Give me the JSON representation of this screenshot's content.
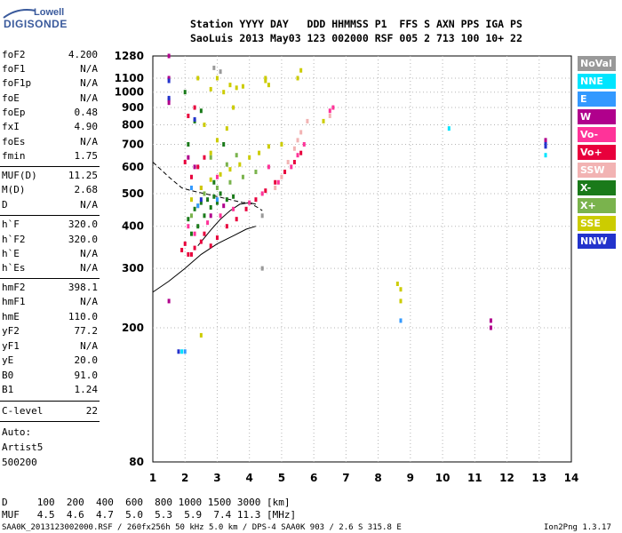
{
  "logo": {
    "brand": "Lowell",
    "product": "DIGISONDE"
  },
  "header": {
    "line1": "Station YYYY DAY   DDD HHMMSS P1  FFS S AXN PPS IGA PS",
    "line2": "SaoLuis 2013 May03 123 002000 RSF 005 2 713 100 10+ 22"
  },
  "params": [
    {
      "k": "foF2",
      "v": "4.200"
    },
    {
      "k": "foF1",
      "v": "N/A"
    },
    {
      "k": "foF1p",
      "v": "N/A"
    },
    {
      "k": "foE",
      "v": "N/A"
    },
    {
      "k": "foEp",
      "v": "0.48"
    },
    {
      "k": "fxI",
      "v": "4.90"
    },
    {
      "k": "foEs",
      "v": "N/A"
    },
    {
      "k": "fmin",
      "v": "1.75"
    },
    {
      "k": "MUF(D)",
      "v": "11.25"
    },
    {
      "k": "M(D)",
      "v": "2.68"
    },
    {
      "k": "D",
      "v": "N/A"
    },
    {
      "k": "h`F",
      "v": "320.0"
    },
    {
      "k": "h`F2",
      "v": "320.0"
    },
    {
      "k": "h`E",
      "v": "N/A"
    },
    {
      "k": "h`Es",
      "v": "N/A"
    },
    {
      "k": "hmF2",
      "v": "398.1"
    },
    {
      "k": "hmF1",
      "v": "N/A"
    },
    {
      "k": "hmE",
      "v": "110.0"
    },
    {
      "k": "yF2",
      "v": "77.2"
    },
    {
      "k": "yF1",
      "v": "N/A"
    },
    {
      "k": "yE",
      "v": "20.0"
    },
    {
      "k": "B0",
      "v": "91.0"
    },
    {
      "k": "B1",
      "v": "1.24"
    },
    {
      "k": "C-level",
      "v": "22"
    }
  ],
  "autoscale": {
    "line1": "Auto:",
    "line2": "Artist5",
    "line3": "500200"
  },
  "footer": {
    "d_row": "D     100  200  400  600  800 1000 1500 3000 [km]",
    "muf_row": "MUF   4.5  4.6  4.7  5.0  5.3  5.9  7.4 11.3 [MHz]",
    "file": "SAA0K_2013123002000.RSF / 260fx256h 50 kHz 5.0 km / DPS-4 SAA0K 903 / 2.6 S 315.8 E",
    "version": "Ion2Png 1.3.17"
  },
  "legend": [
    {
      "label": "NoVal",
      "color": "#999999"
    },
    {
      "label": "NNE",
      "color": "#00e5ff"
    },
    {
      "label": "E",
      "color": "#3399ff"
    },
    {
      "label": "W",
      "color": "#b0008c"
    },
    {
      "label": "Vo-",
      "color": "#ff3399"
    },
    {
      "label": "Vo+",
      "color": "#e8003c"
    },
    {
      "label": "SSW",
      "color": "#f2b3b3"
    },
    {
      "label": "X-",
      "color": "#1a7a1a"
    },
    {
      "label": "X+",
      "color": "#7ab34d"
    },
    {
      "label": "SSE",
      "color": "#cccc00"
    },
    {
      "label": "NNW",
      "color": "#2233cc"
    }
  ],
  "chart_data": {
    "type": "scatter",
    "title": "",
    "xlabel": "",
    "ylabel": "",
    "xlim": [
      1,
      14
    ],
    "ylim": [
      80,
      1280
    ],
    "yscale": "log",
    "x_ticks": [
      1,
      2,
      3,
      4,
      5,
      6,
      7,
      8,
      9,
      10,
      11,
      12,
      13,
      14
    ],
    "y_ticks": [
      80,
      200,
      300,
      400,
      500,
      600,
      700,
      800,
      900,
      1000,
      1100,
      1280
    ],
    "grid": true,
    "legend_position": "right",
    "series": [
      {
        "name": "X-",
        "color": "#1a7a1a",
        "points": [
          [
            2.1,
            420
          ],
          [
            2.3,
            450
          ],
          [
            2.5,
            470
          ],
          [
            2.7,
            480
          ],
          [
            2.9,
            490
          ],
          [
            3.1,
            500
          ],
          [
            2.2,
            380
          ],
          [
            2.4,
            400
          ],
          [
            2.6,
            430
          ],
          [
            2.8,
            455
          ],
          [
            3.0,
            470
          ],
          [
            3.3,
            480
          ],
          [
            3.5,
            490
          ],
          [
            2.9,
            540
          ],
          [
            3.2,
            700
          ],
          [
            2.1,
            700
          ],
          [
            2.3,
            820
          ],
          [
            2.5,
            880
          ],
          [
            2.0,
            1000
          ]
        ]
      },
      {
        "name": "X+",
        "color": "#7ab34d",
        "points": [
          [
            2.2,
            430
          ],
          [
            2.4,
            460
          ],
          [
            2.6,
            500
          ],
          [
            3.0,
            520
          ],
          [
            3.4,
            540
          ],
          [
            3.8,
            560
          ],
          [
            4.2,
            580
          ],
          [
            3.3,
            610
          ],
          [
            2.8,
            640
          ],
          [
            3.6,
            650
          ]
        ]
      },
      {
        "name": "Vo+",
        "color": "#e8003c",
        "points": [
          [
            1.9,
            340
          ],
          [
            2.0,
            355
          ],
          [
            2.1,
            330
          ],
          [
            2.3,
            345
          ],
          [
            2.5,
            360
          ],
          [
            2.6,
            380
          ],
          [
            2.8,
            350
          ],
          [
            3.0,
            370
          ],
          [
            3.3,
            400
          ],
          [
            3.6,
            420
          ],
          [
            3.9,
            450
          ],
          [
            4.2,
            480
          ],
          [
            4.5,
            510
          ],
          [
            4.8,
            540
          ],
          [
            5.1,
            580
          ],
          [
            5.4,
            620
          ],
          [
            5.6,
            660
          ],
          [
            2.4,
            600
          ],
          [
            2.6,
            640
          ],
          [
            2.2,
            560
          ],
          [
            2.0,
            620
          ],
          [
            2.1,
            850
          ],
          [
            2.3,
            900
          ],
          [
            2.2,
            330
          ]
        ]
      },
      {
        "name": "Vo-",
        "color": "#ff3399",
        "points": [
          [
            2.1,
            400
          ],
          [
            2.3,
            380
          ],
          [
            2.7,
            410
          ],
          [
            3.1,
            430
          ],
          [
            3.5,
            450
          ],
          [
            4.0,
            470
          ],
          [
            4.4,
            500
          ],
          [
            4.9,
            540
          ],
          [
            5.3,
            600
          ],
          [
            5.5,
            650
          ],
          [
            5.7,
            700
          ],
          [
            6.5,
            880
          ],
          [
            6.6,
            900
          ],
          [
            2.5,
            520
          ],
          [
            3.0,
            560
          ],
          [
            4.6,
            600
          ]
        ]
      },
      {
        "name": "SSW",
        "color": "#f2b3b3",
        "points": [
          [
            5.2,
            620
          ],
          [
            5.4,
            680
          ],
          [
            5.6,
            760
          ],
          [
            5.8,
            820
          ],
          [
            5.0,
            560
          ],
          [
            4.8,
            520
          ],
          [
            5.5,
            720
          ],
          [
            6.5,
            850
          ]
        ]
      },
      {
        "name": "SSE",
        "color": "#cccc00",
        "points": [
          [
            2.2,
            480
          ],
          [
            2.5,
            520
          ],
          [
            2.8,
            550
          ],
          [
            3.1,
            570
          ],
          [
            3.4,
            590
          ],
          [
            3.7,
            610
          ],
          [
            4.0,
            640
          ],
          [
            4.3,
            660
          ],
          [
            4.6,
            690
          ],
          [
            3.2,
            1000
          ],
          [
            3.4,
            1050
          ],
          [
            3.6,
            1030
          ],
          [
            3.0,
            1100
          ],
          [
            3.8,
            1040
          ],
          [
            4.5,
            1080
          ],
          [
            4.6,
            1050
          ],
          [
            5.6,
            1160
          ],
          [
            5.5,
            1100
          ],
          [
            2.4,
            1100
          ],
          [
            2.8,
            660
          ],
          [
            3.0,
            720
          ],
          [
            3.3,
            780
          ],
          [
            2.6,
            800
          ],
          [
            3.5,
            900
          ],
          [
            2.8,
            1020
          ],
          [
            4.5,
            1100
          ],
          [
            5.0,
            700
          ],
          [
            6.3,
            820
          ],
          [
            8.7,
            260
          ],
          [
            8.7,
            240
          ],
          [
            8.6,
            270
          ],
          [
            2.5,
            190
          ]
        ]
      },
      {
        "name": "W",
        "color": "#b0008c",
        "points": [
          [
            1.5,
            1280
          ],
          [
            1.5,
            1100
          ],
          [
            1.5,
            950
          ],
          [
            1.5,
            930
          ],
          [
            1.5,
            240
          ],
          [
            2.1,
            640
          ],
          [
            2.3,
            600
          ],
          [
            13.2,
            720
          ],
          [
            13.2,
            700
          ],
          [
            11.5,
            210
          ],
          [
            11.5,
            200
          ],
          [
            2.8,
            430
          ],
          [
            3.2,
            460
          ]
        ]
      },
      {
        "name": "NNW",
        "color": "#2233cc",
        "points": [
          [
            1.5,
            1080
          ],
          [
            1.5,
            960
          ],
          [
            13.2,
            690
          ],
          [
            13.2,
            700
          ],
          [
            2.5,
            480
          ],
          [
            2.3,
            830
          ],
          [
            1.8,
            170
          ]
        ]
      },
      {
        "name": "NNE",
        "color": "#00e5ff",
        "points": [
          [
            10.2,
            780
          ],
          [
            1.9,
            170
          ],
          [
            13.2,
            650
          ]
        ]
      },
      {
        "name": "E",
        "color": "#3399ff",
        "points": [
          [
            2.4,
            460
          ],
          [
            2.2,
            520
          ],
          [
            3.0,
            480
          ],
          [
            8.7,
            210
          ],
          [
            2.0,
            170
          ]
        ]
      },
      {
        "name": "NoVal",
        "color": "#999999",
        "points": [
          [
            2.9,
            1180
          ],
          [
            3.1,
            1150
          ],
          [
            4.4,
            430
          ],
          [
            4.4,
            300
          ]
        ]
      }
    ],
    "overlay_curves": [
      {
        "style": "dashed",
        "points": [
          [
            1.0,
            620
          ],
          [
            1.5,
            560
          ],
          [
            1.9,
            520
          ],
          [
            2.2,
            510
          ],
          [
            2.6,
            500
          ],
          [
            3.0,
            490
          ],
          [
            3.4,
            480
          ],
          [
            3.8,
            470
          ],
          [
            4.0,
            470
          ],
          [
            4.25,
            455
          ],
          [
            4.4,
            445
          ]
        ]
      },
      {
        "style": "solid",
        "points": [
          [
            1.0,
            255
          ],
          [
            1.5,
            275
          ],
          [
            2.0,
            300
          ],
          [
            2.5,
            330
          ],
          [
            3.0,
            355
          ],
          [
            3.5,
            375
          ],
          [
            3.9,
            392
          ],
          [
            4.2,
            400
          ]
        ]
      },
      {
        "style": "solid",
        "points": [
          [
            2.4,
            350
          ],
          [
            2.8,
            390
          ],
          [
            3.1,
            420
          ],
          [
            3.4,
            445
          ],
          [
            3.7,
            465
          ],
          [
            4.0,
            470
          ],
          [
            4.2,
            465
          ]
        ]
      }
    ]
  }
}
